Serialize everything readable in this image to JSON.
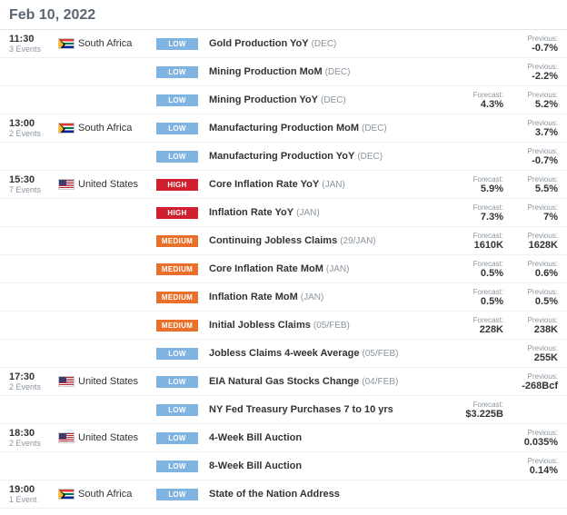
{
  "date": "Feb 10, 2022",
  "impact_colors": {
    "LOW": "#7fb3e2",
    "MEDIUM": "#e8702a",
    "HIGH": "#d01f2f"
  },
  "groups": [
    {
      "time": "11:30",
      "count": "3 Events",
      "country": "South Africa",
      "flag": "sa",
      "events": [
        {
          "impact": "LOW",
          "name": "Gold Production YoY",
          "period": "(DEC)",
          "previous": "-0.7%"
        },
        {
          "impact": "LOW",
          "name": "Mining Production MoM",
          "period": "(DEC)",
          "previous": "-2.2%"
        },
        {
          "impact": "LOW",
          "name": "Mining Production YoY",
          "period": "(DEC)",
          "forecast": "4.3%",
          "previous": "5.2%"
        }
      ]
    },
    {
      "time": "13:00",
      "count": "2 Events",
      "country": "South Africa",
      "flag": "sa",
      "events": [
        {
          "impact": "LOW",
          "name": "Manufacturing Production MoM",
          "period": "(DEC)",
          "previous": "3.7%"
        },
        {
          "impact": "LOW",
          "name": "Manufacturing Production YoY",
          "period": "(DEC)",
          "previous": "-0.7%"
        }
      ]
    },
    {
      "time": "15:30",
      "count": "7 Events",
      "country": "United States",
      "flag": "us",
      "events": [
        {
          "impact": "HIGH",
          "name": "Core Inflation Rate YoY",
          "period": "(JAN)",
          "forecast": "5.9%",
          "previous": "5.5%"
        },
        {
          "impact": "HIGH",
          "name": "Inflation Rate YoY",
          "period": "(JAN)",
          "forecast": "7.3%",
          "previous": "7%"
        },
        {
          "impact": "MEDIUM",
          "name": "Continuing Jobless Claims",
          "period": "(29/JAN)",
          "forecast": "1610K",
          "previous": "1628K"
        },
        {
          "impact": "MEDIUM",
          "name": "Core Inflation Rate MoM",
          "period": "(JAN)",
          "forecast": "0.5%",
          "previous": "0.6%"
        },
        {
          "impact": "MEDIUM",
          "name": "Inflation Rate MoM",
          "period": "(JAN)",
          "forecast": "0.5%",
          "previous": "0.5%"
        },
        {
          "impact": "MEDIUM",
          "name": "Initial Jobless Claims",
          "period": "(05/FEB)",
          "forecast": "228K",
          "previous": "238K"
        },
        {
          "impact": "LOW",
          "name": "Jobless Claims 4-week Average",
          "period": "(05/FEB)",
          "previous": "255K"
        }
      ]
    },
    {
      "time": "17:30",
      "count": "2 Events",
      "country": "United States",
      "flag": "us",
      "events": [
        {
          "impact": "LOW",
          "name": "EIA Natural Gas Stocks Change",
          "period": "(04/FEB)",
          "previous": "-268Bcf"
        },
        {
          "impact": "LOW",
          "name": "NY Fed Treasury Purchases 7 to 10 yrs",
          "period": "",
          "forecast": "$3.225B"
        }
      ]
    },
    {
      "time": "18:30",
      "count": "2 Events",
      "country": "United States",
      "flag": "us",
      "events": [
        {
          "impact": "LOW",
          "name": "4-Week Bill Auction",
          "period": "",
          "previous": "0.035%"
        },
        {
          "impact": "LOW",
          "name": "8-Week Bill Auction",
          "period": "",
          "previous": "0.14%"
        }
      ]
    },
    {
      "time": "19:00",
      "count": "1 Event",
      "country": "South Africa",
      "flag": "sa",
      "events": [
        {
          "impact": "LOW",
          "name": "State of the Nation Address",
          "period": ""
        }
      ]
    }
  ],
  "labels": {
    "forecast": "Forecast:",
    "previous": "Previous:"
  }
}
